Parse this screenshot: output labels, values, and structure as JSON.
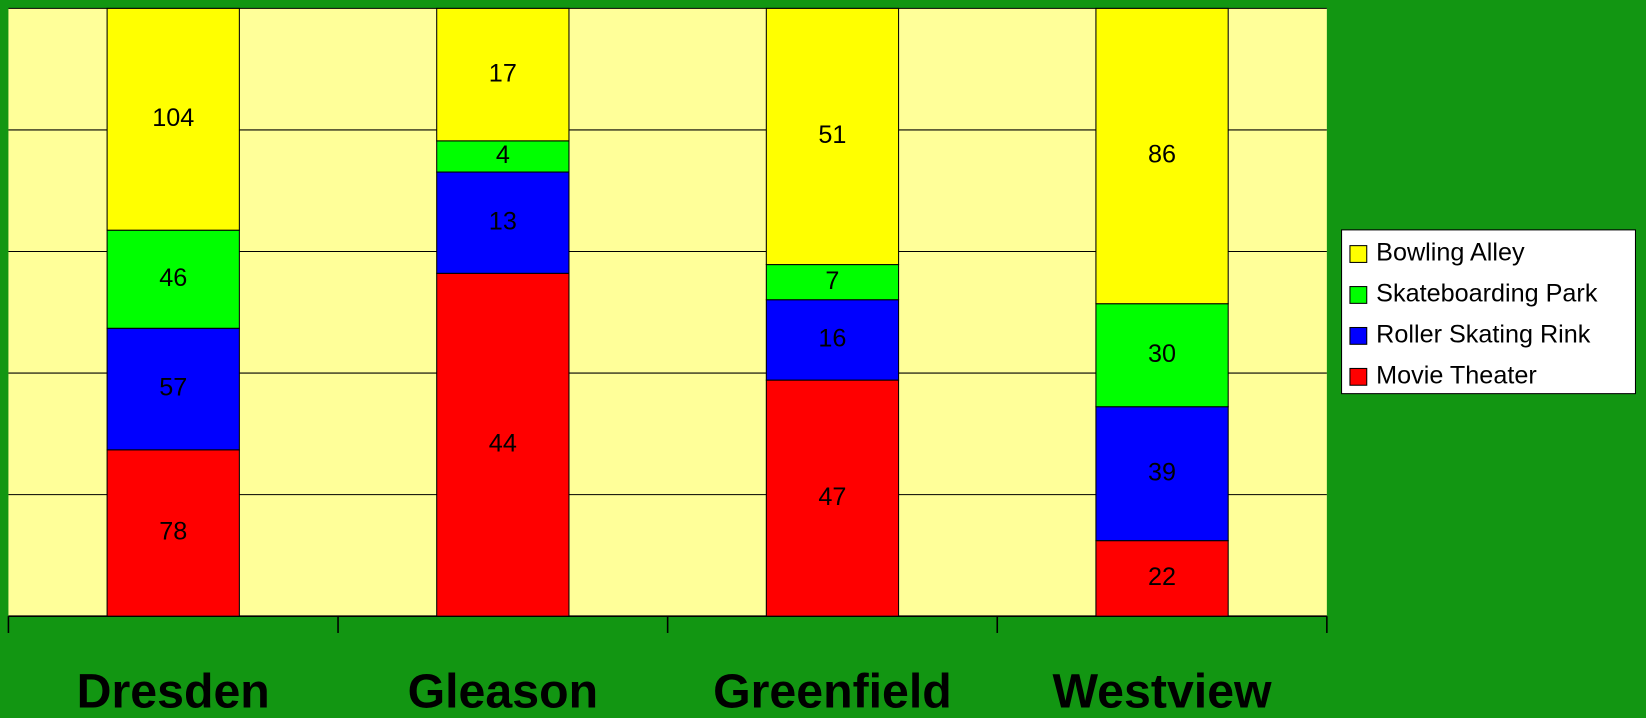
{
  "chart_data": {
    "type": "bar",
    "stacking": "percent",
    "categories": [
      "Dresden",
      "Gleason",
      "Greenfield",
      "Westview"
    ],
    "series": [
      {
        "name": "Movie Theater",
        "color": "#ff0000",
        "values": [
          78,
          44,
          47,
          22
        ]
      },
      {
        "name": "Roller Skating Rink",
        "color": "#0000ff",
        "values": [
          57,
          13,
          16,
          39
        ]
      },
      {
        "name": "Skateboarding Park",
        "color": "#00ff00",
        "values": [
          46,
          4,
          7,
          30
        ]
      },
      {
        "name": "Bowling Alley",
        "color": "#ffff00",
        "values": [
          104,
          17,
          51,
          86
        ]
      }
    ],
    "ylim": [
      0,
      100
    ],
    "yticks": [
      0,
      20,
      40,
      60,
      80,
      100
    ],
    "ytick_labels": false,
    "grid": true,
    "legend": "right",
    "plot_background": "#ffff99",
    "background": "#129612"
  }
}
